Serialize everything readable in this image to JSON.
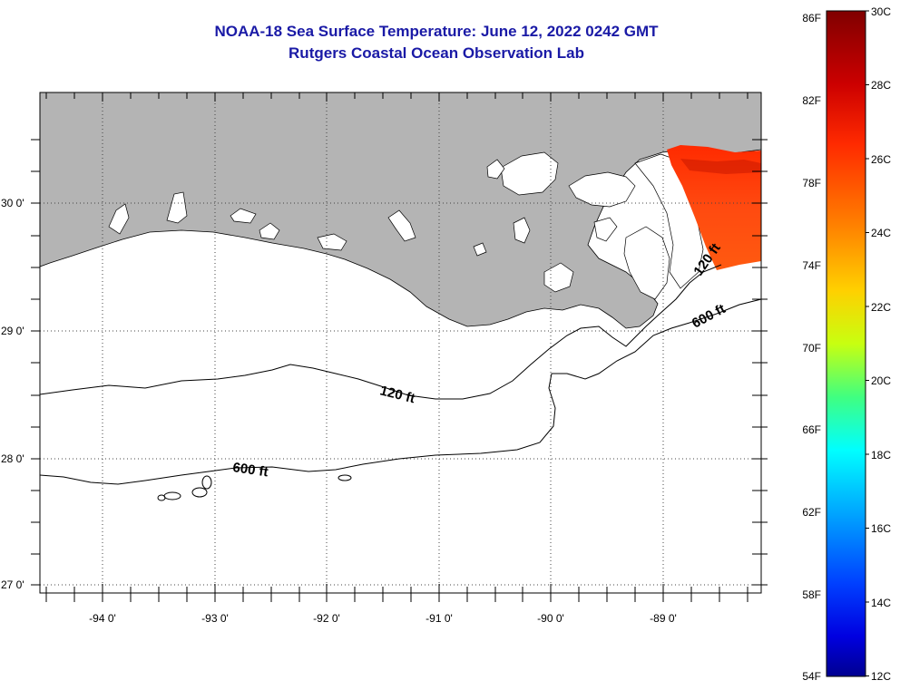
{
  "title": {
    "line1": "NOAA-18 Sea Surface Temperature:  June 12, 2022 0242 GMT",
    "line2": "Rutgers Coastal Ocean Observation Lab"
  },
  "map": {
    "lon_labels": [
      "-94 0'",
      "-93 0'",
      "-92 0'",
      "-91 0'",
      "-90 0'",
      "-89 0'"
    ],
    "lat_labels": [
      "30 0'",
      "29 0'",
      "28 0'",
      "27 0'"
    ],
    "contours": [
      "120 ft",
      "600 ft",
      "120 ft",
      "600 ft"
    ],
    "land_color": "#b4b4b4"
  },
  "colorbar": {
    "fahrenheit": [
      "86F",
      "82F",
      "78F",
      "74F",
      "70F",
      "66F",
      "62F",
      "58F",
      "54F"
    ],
    "celsius": [
      "30C",
      "28C",
      "26C",
      "24C",
      "22C",
      "20C",
      "18C",
      "16C",
      "14C",
      "12C"
    ]
  }
}
